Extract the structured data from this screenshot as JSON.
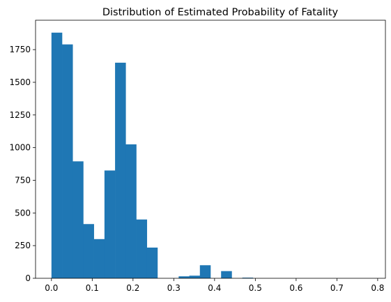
{
  "chart_data": {
    "type": "bar",
    "subtype": "histogram",
    "title": "Distribution of Estimated Probability of Fatality",
    "xlabel": "",
    "ylabel": "",
    "xlim": [
      -0.039,
      0.819
    ],
    "ylim": [
      0,
      1975
    ],
    "x_ticks": [
      0.0,
      0.1,
      0.2,
      0.3,
      0.4,
      0.5,
      0.6,
      0.7,
      0.8
    ],
    "x_tick_labels": [
      "0.0",
      "0.1",
      "0.2",
      "0.3",
      "0.4",
      "0.5",
      "0.6",
      "0.7",
      "0.8"
    ],
    "y_ticks": [
      0,
      250,
      500,
      750,
      1000,
      1250,
      1500,
      1750
    ],
    "y_tick_labels": [
      "0",
      "250",
      "500",
      "750",
      "1000",
      "1250",
      "1500",
      "1750"
    ],
    "bin_start": 0.0,
    "bin_width": 0.026,
    "values": [
      1880,
      1790,
      895,
      415,
      300,
      825,
      1650,
      1025,
      450,
      235,
      0,
      0,
      15,
      20,
      100,
      0,
      55,
      0,
      5,
      0,
      0,
      0,
      0,
      0,
      0,
      0,
      0,
      0,
      0,
      0
    ],
    "color": "#1f77b4",
    "grid": false,
    "legend": "none"
  }
}
